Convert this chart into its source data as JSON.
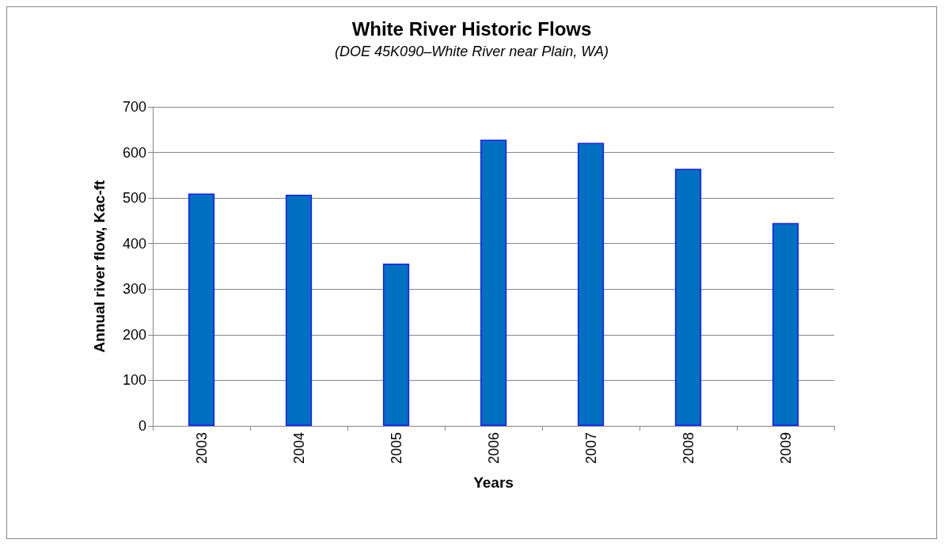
{
  "chart_data": {
    "type": "bar",
    "title": "White River Historic Flows",
    "subtitle": "(DOE 45K090–White River near Plain, WA)",
    "xlabel": "Years",
    "ylabel": "Annual river flow, Kac-ft",
    "categories": [
      "2003",
      "2004",
      "2005",
      "2006",
      "2007",
      "2008",
      "2009"
    ],
    "values": [
      510,
      507,
      356,
      628,
      621,
      564,
      445
    ],
    "color": "#0070c0",
    "ylim": [
      0,
      700
    ],
    "yticks": [
      0,
      100,
      200,
      300,
      400,
      500,
      600,
      700
    ],
    "grid": "y"
  }
}
